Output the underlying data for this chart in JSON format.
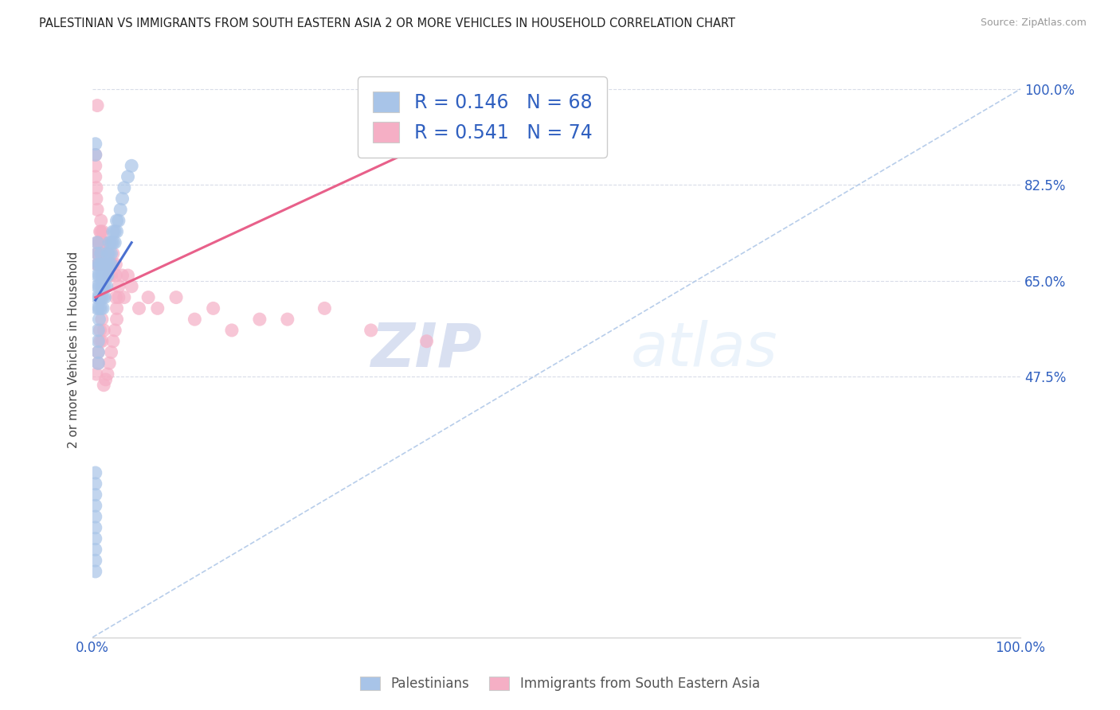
{
  "title": "PALESTINIAN VS IMMIGRANTS FROM SOUTH EASTERN ASIA 2 OR MORE VEHICLES IN HOUSEHOLD CORRELATION CHART",
  "source": "Source: ZipAtlas.com",
  "ylabel": "2 or more Vehicles in Household",
  "xlim": [
    0.0,
    1.0
  ],
  "ylim": [
    0.0,
    1.05
  ],
  "ytick_positions": [
    0.475,
    0.65,
    0.825,
    1.0
  ],
  "ytick_labels_right": [
    "47.5%",
    "65.0%",
    "82.5%",
    "100.0%"
  ],
  "blue_R": "0.146",
  "blue_N": "68",
  "pink_R": "0.541",
  "pink_N": "74",
  "blue_color": "#a8c4e8",
  "pink_color": "#f5afc5",
  "blue_line_color": "#4a70d0",
  "pink_line_color": "#e8608a",
  "diagonal_color": "#b0c8e8",
  "background_color": "#ffffff",
  "grid_color": "#d8dce8",
  "legend_label_blue": "Palestinians",
  "legend_label_pink": "Immigrants from South Eastern Asia",
  "watermark_zip": "ZIP",
  "watermark_atlas": "atlas",
  "blue_scatter_x": [
    0.005,
    0.005,
    0.005,
    0.005,
    0.005,
    0.005,
    0.005,
    0.007,
    0.007,
    0.007,
    0.007,
    0.007,
    0.007,
    0.009,
    0.009,
    0.009,
    0.009,
    0.009,
    0.009,
    0.011,
    0.011,
    0.011,
    0.011,
    0.011,
    0.013,
    0.013,
    0.013,
    0.013,
    0.015,
    0.015,
    0.015,
    0.016,
    0.016,
    0.016,
    0.018,
    0.018,
    0.018,
    0.02,
    0.02,
    0.02,
    0.022,
    0.022,
    0.024,
    0.024,
    0.026,
    0.026,
    0.028,
    0.03,
    0.032,
    0.034,
    0.038,
    0.042,
    0.006,
    0.006,
    0.006,
    0.006,
    0.003,
    0.003,
    0.003,
    0.003,
    0.003,
    0.003,
    0.003,
    0.003,
    0.003,
    0.003,
    0.003,
    0.003
  ],
  "blue_scatter_y": [
    0.72,
    0.7,
    0.68,
    0.66,
    0.64,
    0.62,
    0.6,
    0.68,
    0.66,
    0.64,
    0.62,
    0.6,
    0.58,
    0.7,
    0.68,
    0.66,
    0.64,
    0.62,
    0.6,
    0.68,
    0.66,
    0.64,
    0.62,
    0.6,
    0.68,
    0.66,
    0.64,
    0.62,
    0.68,
    0.66,
    0.64,
    0.7,
    0.68,
    0.66,
    0.72,
    0.7,
    0.68,
    0.72,
    0.7,
    0.68,
    0.74,
    0.72,
    0.74,
    0.72,
    0.76,
    0.74,
    0.76,
    0.78,
    0.8,
    0.82,
    0.84,
    0.86,
    0.56,
    0.54,
    0.52,
    0.5,
    0.9,
    0.88,
    0.3,
    0.28,
    0.26,
    0.24,
    0.22,
    0.2,
    0.18,
    0.16,
    0.14,
    0.12
  ],
  "pink_scatter_x": [
    0.005,
    0.005,
    0.005,
    0.005,
    0.006,
    0.006,
    0.007,
    0.007,
    0.008,
    0.008,
    0.009,
    0.009,
    0.01,
    0.01,
    0.011,
    0.011,
    0.012,
    0.012,
    0.013,
    0.013,
    0.014,
    0.014,
    0.016,
    0.016,
    0.018,
    0.018,
    0.02,
    0.02,
    0.022,
    0.022,
    0.025,
    0.025,
    0.028,
    0.028,
    0.032,
    0.034,
    0.038,
    0.042,
    0.05,
    0.06,
    0.07,
    0.09,
    0.11,
    0.13,
    0.15,
    0.18,
    0.21,
    0.25,
    0.3,
    0.36,
    0.003,
    0.003,
    0.003,
    0.004,
    0.004,
    0.005,
    0.025,
    0.026,
    0.026,
    0.024,
    0.022,
    0.02,
    0.018,
    0.016,
    0.014,
    0.012,
    0.012,
    0.01,
    0.01,
    0.008,
    0.008,
    0.006,
    0.006,
    0.004
  ],
  "pink_scatter_y": [
    0.97,
    0.72,
    0.7,
    0.68,
    0.7,
    0.68,
    0.72,
    0.7,
    0.74,
    0.72,
    0.76,
    0.74,
    0.72,
    0.7,
    0.74,
    0.72,
    0.7,
    0.68,
    0.72,
    0.7,
    0.68,
    0.66,
    0.7,
    0.68,
    0.68,
    0.66,
    0.68,
    0.66,
    0.7,
    0.68,
    0.68,
    0.66,
    0.64,
    0.62,
    0.66,
    0.62,
    0.66,
    0.64,
    0.6,
    0.62,
    0.6,
    0.62,
    0.58,
    0.6,
    0.56,
    0.58,
    0.58,
    0.6,
    0.56,
    0.54,
    0.88,
    0.86,
    0.84,
    0.82,
    0.8,
    0.78,
    0.62,
    0.6,
    0.58,
    0.56,
    0.54,
    0.52,
    0.5,
    0.48,
    0.47,
    0.46,
    0.56,
    0.54,
    0.58,
    0.56,
    0.54,
    0.52,
    0.5,
    0.48
  ],
  "blue_line_x": [
    0.003,
    0.042
  ],
  "blue_line_y": [
    0.615,
    0.72
  ],
  "pink_line_x": [
    0.003,
    0.36
  ],
  "pink_line_y": [
    0.62,
    0.9
  ]
}
